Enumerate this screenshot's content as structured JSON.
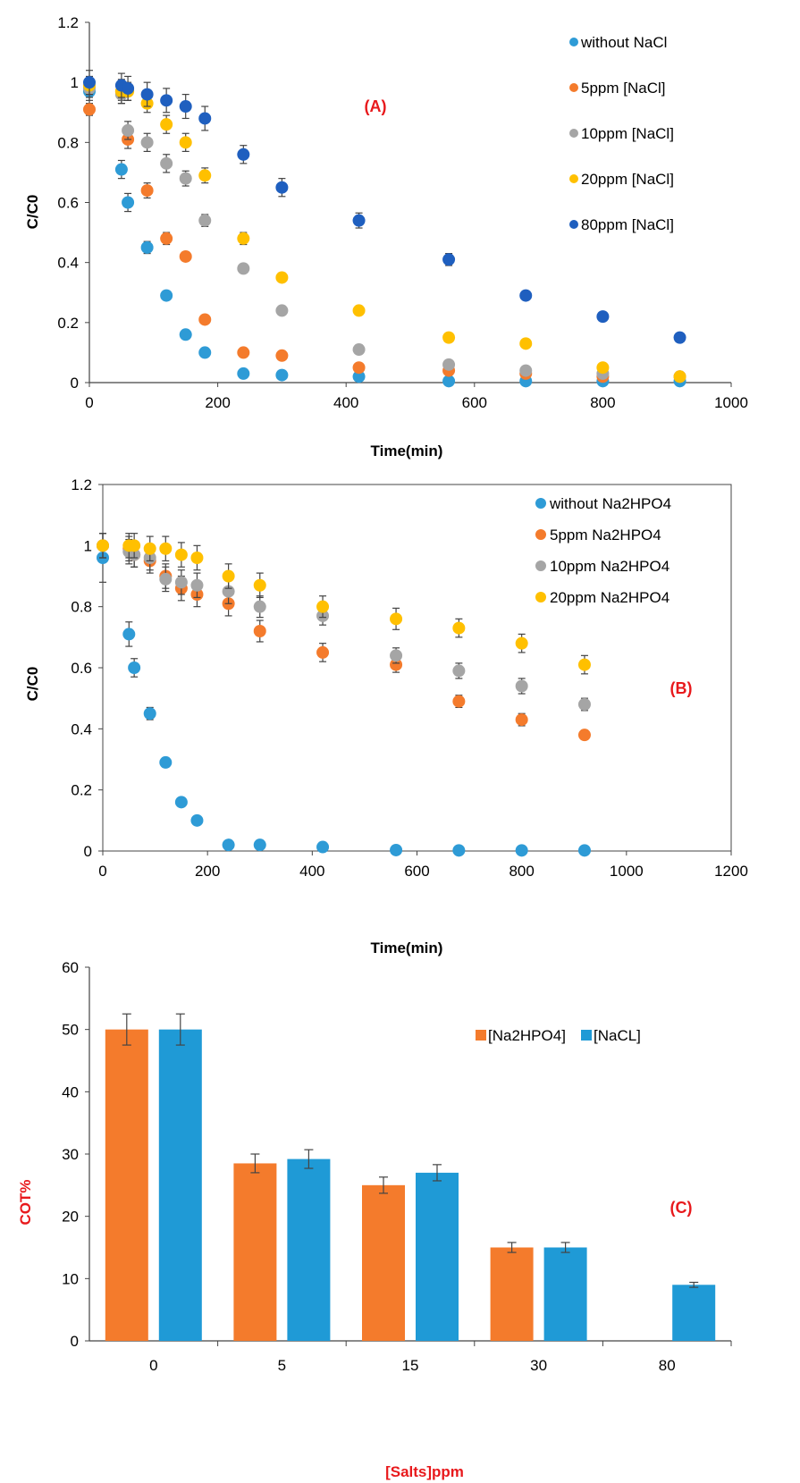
{
  "chart_data": [
    {
      "type": "scatter",
      "panel_label": "(A)",
      "xlabel": "Time(min)",
      "ylabel": "C/C0",
      "xlim": [
        0,
        1000
      ],
      "ylim": [
        0,
        1.2
      ],
      "xticks": [
        "0",
        "200",
        "400",
        "600",
        "800",
        "1000"
      ],
      "yticks": [
        "0",
        "0.2",
        "0.4",
        "0.6",
        "0.8",
        "1",
        "1.2"
      ],
      "grid": false,
      "legend_position": "top-right",
      "series": [
        {
          "name": "without NaCl",
          "color": "#2e9bd6",
          "x": [
            0,
            50,
            60,
            90,
            120,
            150,
            180,
            240,
            300,
            420,
            560,
            680,
            800,
            920
          ],
          "y": [
            0.97,
            0.71,
            0.6,
            0.45,
            0.29,
            0.16,
            0.1,
            0.03,
            0.025,
            0.02,
            0.005,
            0.005,
            0.005,
            0.005
          ],
          "err": [
            0.03,
            0.03,
            0.03,
            0.02,
            0.015,
            0.01,
            0.01,
            0.005,
            0.005,
            0.005,
            0.005,
            0.005,
            0.005,
            0.005
          ]
        },
        {
          "name": "5ppm [NaCl]",
          "color": "#f47b2c",
          "x": [
            0,
            50,
            60,
            90,
            120,
            150,
            180,
            240,
            300,
            420,
            560,
            680,
            800,
            920
          ],
          "y": [
            0.91,
            0.97,
            0.81,
            0.64,
            0.48,
            0.42,
            0.21,
            0.1,
            0.09,
            0.05,
            0.04,
            0.03,
            0.02,
            0.02
          ],
          "err": [
            0.02,
            0.03,
            0.03,
            0.025,
            0.02,
            0.015,
            0.01,
            0.01,
            0.01,
            0.01,
            0.01,
            0.01,
            0.005,
            0.005
          ]
        },
        {
          "name": "10ppm [NaCl]",
          "color": "#a5a5a5",
          "x": [
            0,
            50,
            60,
            90,
            120,
            150,
            180,
            240,
            300,
            420,
            560,
            680,
            800,
            920
          ],
          "y": [
            0.98,
            0.96,
            0.84,
            0.8,
            0.73,
            0.68,
            0.54,
            0.38,
            0.24,
            0.11,
            0.06,
            0.04,
            0.03,
            0.02
          ],
          "err": [
            0.03,
            0.03,
            0.03,
            0.03,
            0.03,
            0.025,
            0.02,
            0.015,
            0.01,
            0.01,
            0.01,
            0.01,
            0.005,
            0.005
          ]
        },
        {
          "name": "20ppm [NaCl]",
          "color": "#ffc000",
          "x": [
            0,
            50,
            60,
            90,
            120,
            150,
            180,
            240,
            300,
            420,
            560,
            680,
            800,
            920
          ],
          "y": [
            0.99,
            0.97,
            0.97,
            0.93,
            0.86,
            0.8,
            0.69,
            0.48,
            0.35,
            0.24,
            0.15,
            0.13,
            0.05,
            0.02
          ],
          "err": [
            0.03,
            0.04,
            0.03,
            0.03,
            0.03,
            0.03,
            0.025,
            0.02,
            0.015,
            0.01,
            0.01,
            0.01,
            0.01,
            0.005
          ]
        },
        {
          "name": "80ppm [NaCl]",
          "color": "#1f5fbf",
          "x": [
            0,
            50,
            60,
            90,
            120,
            150,
            180,
            240,
            300,
            420,
            560,
            680,
            800,
            920
          ],
          "y": [
            1.0,
            0.99,
            0.98,
            0.96,
            0.94,
            0.92,
            0.88,
            0.76,
            0.65,
            0.54,
            0.41,
            0.29,
            0.22,
            0.15
          ],
          "err": [
            0.04,
            0.04,
            0.04,
            0.04,
            0.04,
            0.04,
            0.04,
            0.03,
            0.03,
            0.025,
            0.02,
            0.015,
            0.01,
            0.01
          ]
        }
      ]
    },
    {
      "type": "scatter",
      "panel_label": "(B)",
      "xlabel": "Time(min)",
      "ylabel": "C/C0",
      "xlim": [
        0,
        1200
      ],
      "ylim": [
        0,
        1.2
      ],
      "xticks": [
        "0",
        "200",
        "400",
        "600",
        "800",
        "1000",
        "1200"
      ],
      "yticks": [
        "0",
        "0.2",
        "0.4",
        "0.6",
        "0.8",
        "1",
        "1.2"
      ],
      "grid": false,
      "legend_position": "top-right",
      "series": [
        {
          "name": "without Na2HPO4",
          "color": "#2e9bd6",
          "x": [
            0,
            50,
            60,
            90,
            120,
            150,
            180,
            240,
            300,
            420,
            560,
            680,
            800,
            920
          ],
          "y": [
            0.96,
            0.71,
            0.6,
            0.45,
            0.29,
            0.16,
            0.1,
            0.02,
            0.02,
            0.013,
            0.003,
            0.002,
            0.002,
            0.002
          ],
          "err": [
            0.08,
            0.04,
            0.03,
            0.02,
            0.015,
            0.01,
            0.01,
            0.005,
            0.005,
            0.005,
            0.003,
            0.002,
            0.002,
            0.002
          ]
        },
        {
          "name": "5ppm Na2HPO4",
          "color": "#f47b2c",
          "x": [
            0,
            50,
            60,
            90,
            120,
            150,
            180,
            240,
            300,
            420,
            560,
            680,
            800,
            920
          ],
          "y": [
            1.0,
            0.99,
            0.97,
            0.95,
            0.9,
            0.86,
            0.84,
            0.81,
            0.72,
            0.65,
            0.61,
            0.49,
            0.43,
            0.38
          ],
          "err": [
            0.04,
            0.04,
            0.04,
            0.04,
            0.04,
            0.04,
            0.04,
            0.04,
            0.035,
            0.03,
            0.025,
            0.02,
            0.02,
            0.015
          ]
        },
        {
          "name": "10ppm Na2HPO4",
          "color": "#a5a5a5",
          "x": [
            0,
            50,
            60,
            90,
            120,
            150,
            180,
            240,
            300,
            420,
            560,
            680,
            800,
            920
          ],
          "y": [
            1.0,
            0.98,
            0.97,
            0.96,
            0.89,
            0.88,
            0.87,
            0.85,
            0.8,
            0.77,
            0.64,
            0.59,
            0.54,
            0.48
          ],
          "err": [
            0.04,
            0.04,
            0.04,
            0.04,
            0.04,
            0.04,
            0.04,
            0.04,
            0.035,
            0.03,
            0.025,
            0.025,
            0.025,
            0.02
          ]
        },
        {
          "name": "20ppm Na2HPO4",
          "color": "#ffc000",
          "x": [
            0,
            50,
            60,
            90,
            120,
            150,
            180,
            240,
            300,
            420,
            560,
            680,
            800,
            920
          ],
          "y": [
            1.0,
            1.0,
            1.0,
            0.99,
            0.99,
            0.97,
            0.96,
            0.9,
            0.87,
            0.8,
            0.76,
            0.73,
            0.68,
            0.61
          ],
          "err": [
            0.04,
            0.04,
            0.04,
            0.04,
            0.04,
            0.04,
            0.04,
            0.04,
            0.04,
            0.035,
            0.035,
            0.03,
            0.03,
            0.03
          ]
        }
      ]
    },
    {
      "type": "bar",
      "panel_label": "(C)",
      "xlabel": "[Salts]ppm",
      "ylabel": "COT%",
      "ylim": [
        0,
        60
      ],
      "yticks": [
        "0",
        "10",
        "20",
        "30",
        "40",
        "50",
        "60"
      ],
      "categories": [
        "0",
        "5",
        "15",
        "30",
        "80"
      ],
      "grid": false,
      "legend_position": "top-right",
      "series": [
        {
          "name": "[Na2HPO4]",
          "color": "#f47b2c",
          "values": [
            50,
            28.5,
            25,
            15,
            null
          ],
          "err": [
            2.5,
            1.5,
            1.3,
            0.8,
            null
          ]
        },
        {
          "name": "[NaCL]",
          "color": "#1f9ad6",
          "values": [
            50,
            29.2,
            27,
            15,
            9
          ],
          "err": [
            2.5,
            1.5,
            1.3,
            0.8,
            0.4
          ]
        }
      ]
    }
  ]
}
